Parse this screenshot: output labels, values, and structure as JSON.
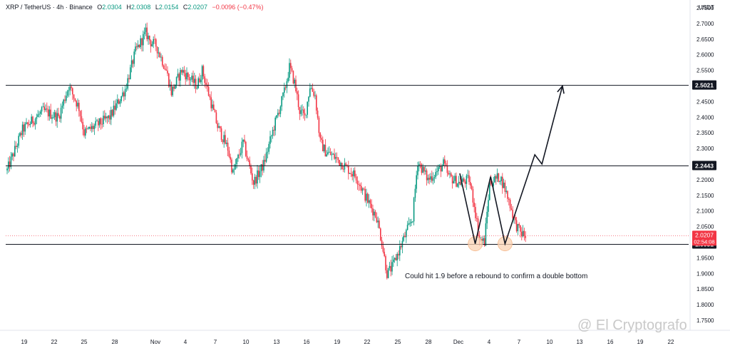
{
  "header": {
    "symbol": "XRP / TetherUS · 4h · Binance",
    "open_label": "O",
    "open": "2.0304",
    "high_label": "H",
    "high": "2.0308",
    "low_label": "L",
    "low": "2.0154",
    "close_label": "C",
    "close": "2.0207",
    "change": "−0.0096 (−0.47%)"
  },
  "price_unit": "USDT",
  "watermark": "@ El Cryptografo",
  "colors": {
    "up": "#089981",
    "down": "#f23645",
    "level_line": "#131722",
    "current_price": "#f23645",
    "circle_fill": "#fbd3b4"
  },
  "chart_data": {
    "type": "candlestick",
    "y_range": [
      1.75,
      2.75
    ],
    "y_ticks": [
      "2.7500",
      "2.7000",
      "2.6500",
      "2.6000",
      "2.5500",
      "2.5000",
      "2.4500",
      "2.4000",
      "2.3500",
      "2.3000",
      "2.2500",
      "2.2000",
      "2.1500",
      "2.1000",
      "2.0500",
      "1.9500",
      "1.9000",
      "1.8500",
      "1.8000",
      "1.7500"
    ],
    "x_ticks": [
      "19",
      "22",
      "25",
      "28",
      "Nov",
      "4",
      "7",
      "10",
      "13",
      "16",
      "19",
      "22",
      "25",
      "28",
      "Dec",
      "4",
      "7",
      "10",
      "13",
      "16",
      "19",
      "22"
    ],
    "horizontal_levels": [
      {
        "price": 2.5021,
        "label": "2.5021"
      },
      {
        "price": 2.2443,
        "label": "2.2443"
      },
      {
        "price": 1.9931,
        "label": "1.9931"
      }
    ],
    "current_price": {
      "price": 2.0207,
      "label": "2.0207",
      "countdown": "02:54:08"
    },
    "price_path": [
      [
        0,
        2.23
      ],
      [
        3,
        2.36
      ],
      [
        7,
        2.42
      ],
      [
        10,
        2.4
      ],
      [
        12,
        2.5
      ],
      [
        14,
        2.43
      ],
      [
        15,
        2.35
      ],
      [
        18,
        2.38
      ],
      [
        20,
        2.4
      ],
      [
        23,
        2.49
      ],
      [
        25,
        2.61
      ],
      [
        27,
        2.67
      ],
      [
        28,
        2.64
      ],
      [
        29,
        2.63
      ],
      [
        31,
        2.55
      ],
      [
        32,
        2.48
      ],
      [
        34,
        2.55
      ],
      [
        37,
        2.5
      ],
      [
        38,
        2.55
      ],
      [
        39,
        2.49
      ],
      [
        41,
        2.37
      ],
      [
        43,
        2.3
      ],
      [
        44,
        2.22
      ],
      [
        46,
        2.32
      ],
      [
        48,
        2.19
      ],
      [
        50,
        2.25
      ],
      [
        52,
        2.37
      ],
      [
        54,
        2.48
      ],
      [
        55,
        2.56
      ],
      [
        56,
        2.51
      ],
      [
        57,
        2.42
      ],
      [
        58,
        2.4
      ],
      [
        59,
        2.5
      ],
      [
        60,
        2.47
      ],
      [
        61,
        2.32
      ],
      [
        62,
        2.29
      ],
      [
        64,
        2.27
      ],
      [
        66,
        2.24
      ],
      [
        68,
        2.21
      ],
      [
        70,
        2.14
      ],
      [
        72,
        2.08
      ],
      [
        73,
        2.0
      ],
      [
        74,
        1.9
      ],
      [
        75,
        1.92
      ],
      [
        77,
        2.0
      ],
      [
        79,
        2.08
      ],
      [
        80,
        2.26
      ],
      [
        82,
        2.2
      ],
      [
        84,
        2.23
      ],
      [
        85,
        2.25
      ],
      [
        86,
        2.21
      ],
      [
        88,
        2.19
      ],
      [
        90,
        2.2
      ],
      [
        91,
        2.12
      ],
      [
        92,
        2.01
      ],
      [
        93,
        2.0
      ],
      [
        94,
        2.19
      ],
      [
        96,
        2.21
      ],
      [
        97,
        2.17
      ],
      [
        98,
        2.12
      ],
      [
        99,
        2.06
      ],
      [
        100,
        2.03
      ],
      [
        101,
        2.02
      ]
    ],
    "projection": [
      {
        "date_index": 88.2,
        "price": 2.22
      },
      {
        "date_index": 91.2,
        "price": 1.995
      },
      {
        "date_index": 94.2,
        "price": 2.21
      },
      {
        "date_index": 97.0,
        "price": 1.995
      },
      {
        "date_index": 102.8,
        "price": 2.28
      },
      {
        "date_index": 104.2,
        "price": 2.25
      },
      {
        "date_index": 108.2,
        "price": 2.5
      }
    ],
    "bottom_markers": [
      {
        "date_index": 91.2,
        "price": 1.995
      },
      {
        "date_index": 97.0,
        "price": 1.995
      }
    ],
    "annotation": "Could hit 1.9 before a rebound to confirm a double bottom"
  }
}
